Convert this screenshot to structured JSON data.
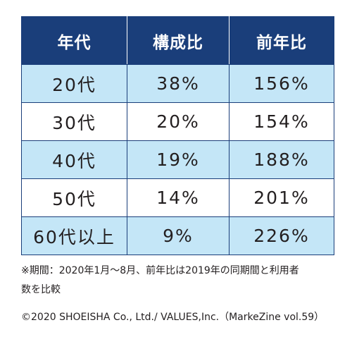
{
  "chart_data": {
    "type": "table",
    "columns": [
      "年代",
      "構成比",
      "前年比"
    ],
    "rows": [
      [
        "20代",
        "38%",
        "156%"
      ],
      [
        "30代",
        "20%",
        "154%"
      ],
      [
        "40代",
        "19%",
        "188%"
      ],
      [
        "50代",
        "14%",
        "201%"
      ],
      [
        "60代以上",
        "9%",
        "226%"
      ]
    ]
  },
  "colors": {
    "header_bg": "#1a3e7a",
    "row_alt_bg": "#c4e6f7"
  },
  "note": {
    "line1": "※期間：2020年1月～8月、前年比は2019年の同期間と利用者",
    "line2": "数を比較"
  },
  "copyright": "©2020 SHOEISHA Co., Ltd./ VALUES,Inc.（MarkeZine vol.59）"
}
